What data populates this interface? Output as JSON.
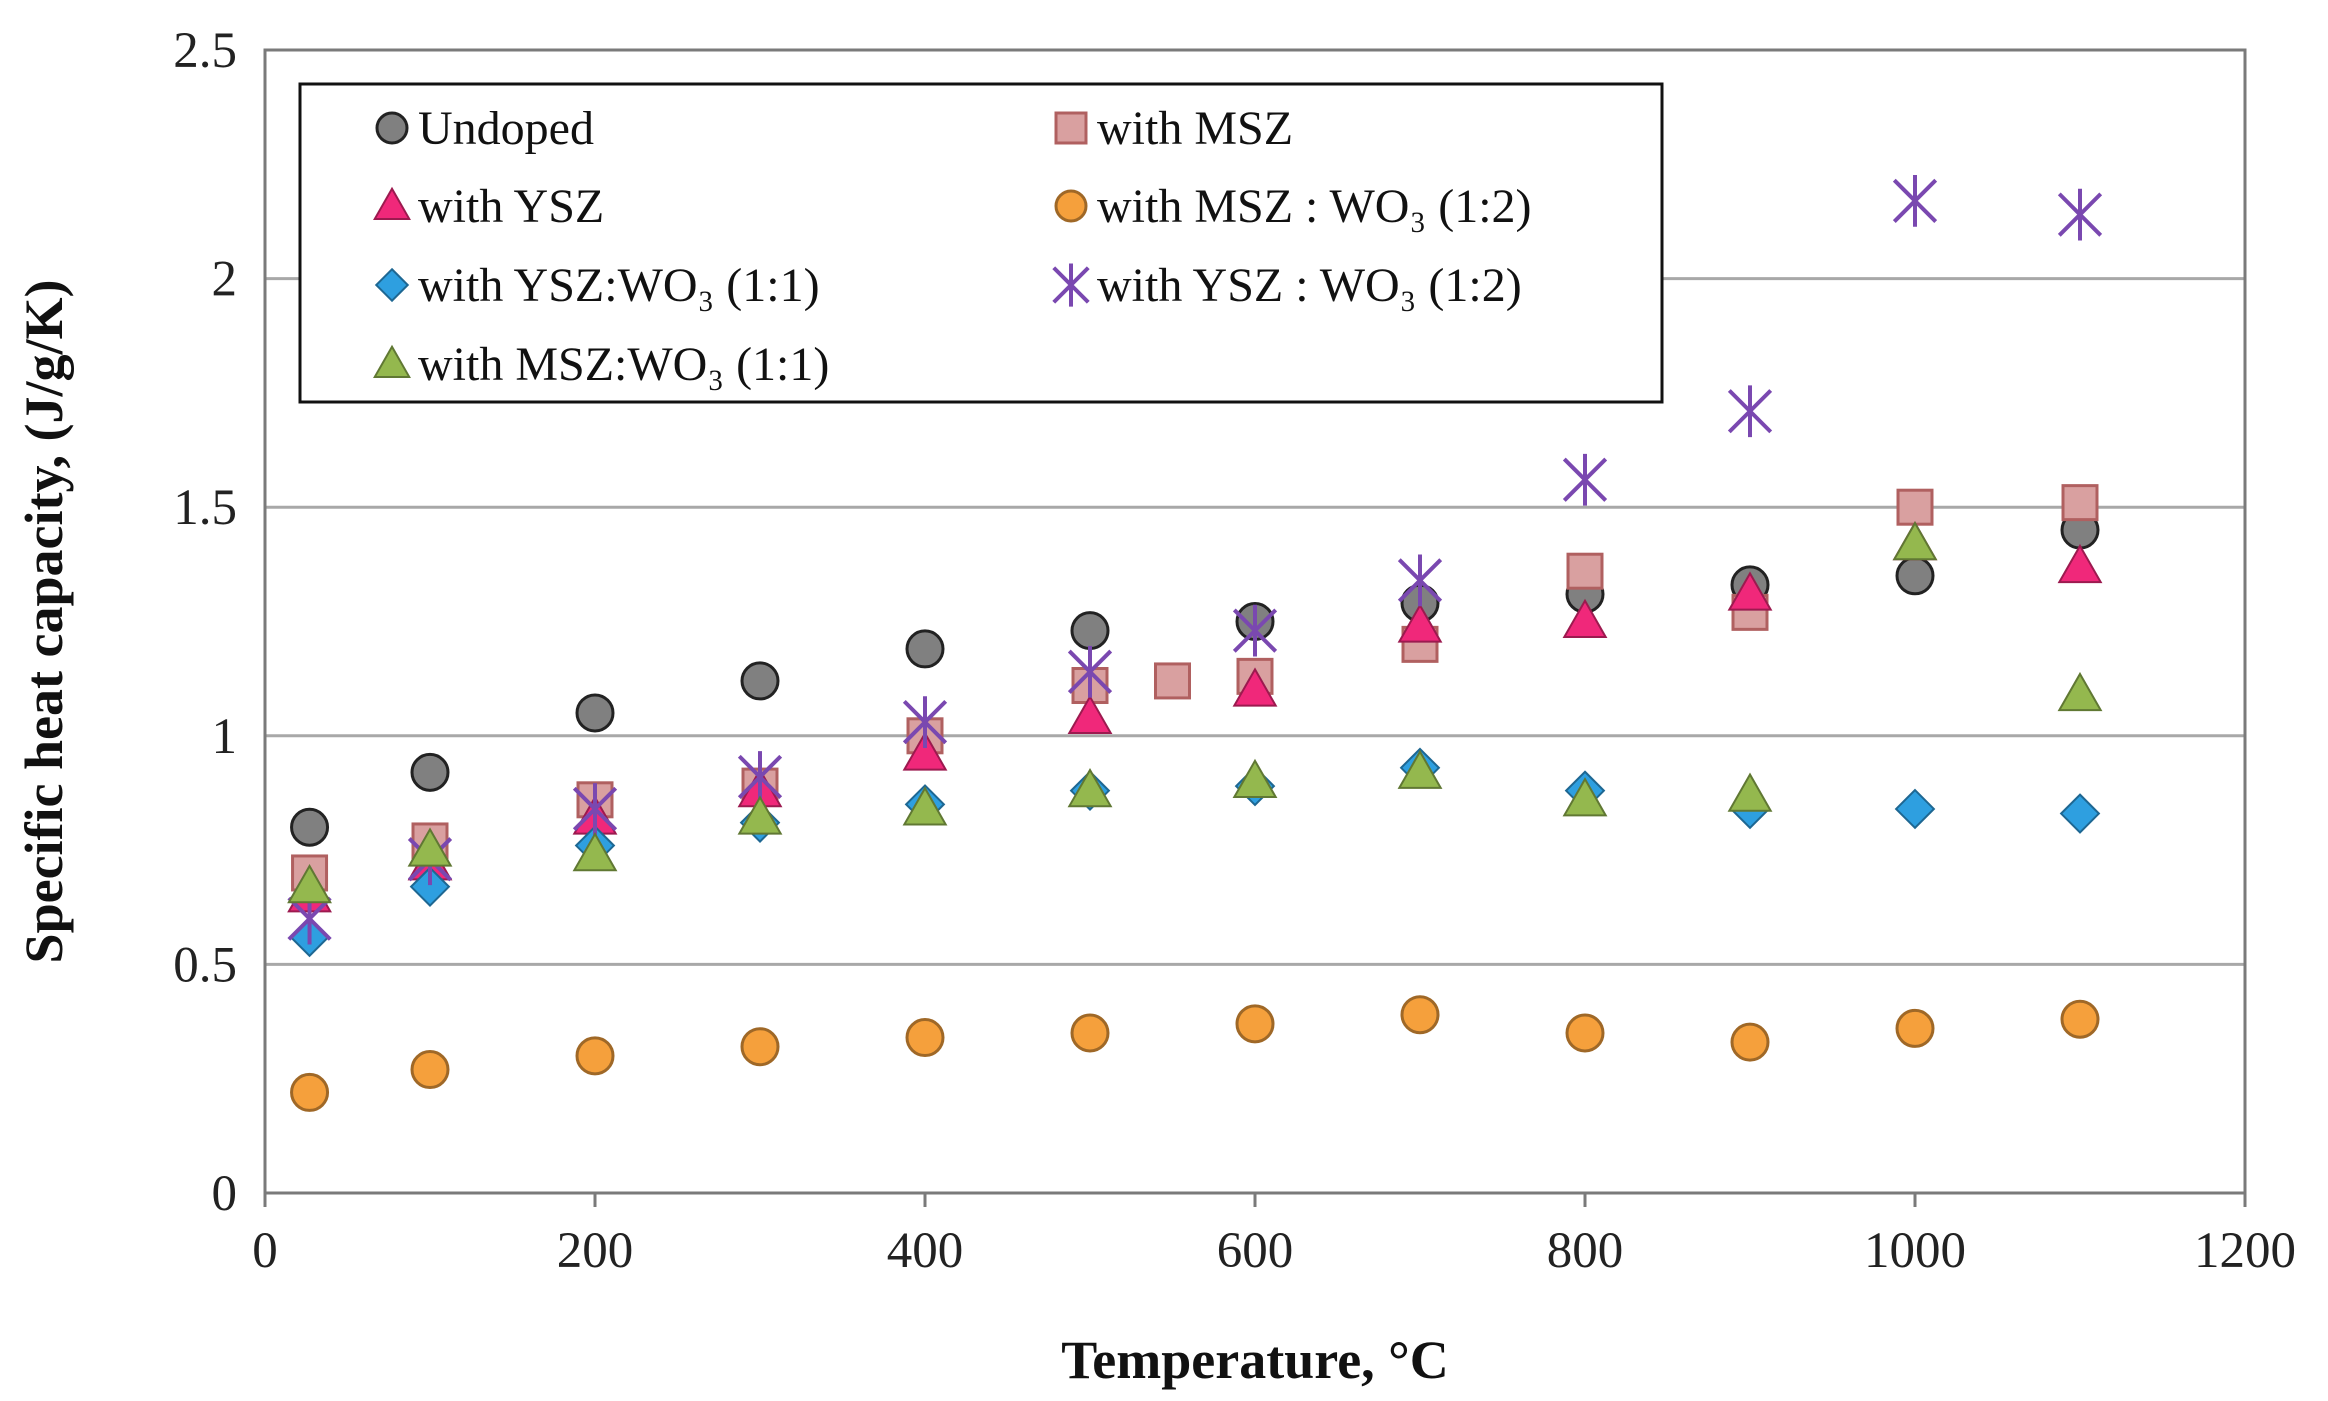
{
  "chart_data": {
    "type": "scatter",
    "xlabel": "Temperature, °C",
    "ylabel": "Specific heat capacity, (J/g/K)",
    "xlim": [
      0,
      1200
    ],
    "ylim": [
      0,
      2.5
    ],
    "x_ticks": [
      "0",
      "200",
      "400",
      "600",
      "800",
      "1000",
      "1200"
    ],
    "y_ticks": [
      "0",
      "0.5",
      "1",
      "1.5",
      "2",
      "2.5"
    ],
    "grid": "horizontal",
    "legend_position": "top-left",
    "series": [
      {
        "name": "Undoped",
        "marker": "circle",
        "color": "#808080",
        "points": [
          [
            27,
            0.8
          ],
          [
            100,
            0.92
          ],
          [
            200,
            1.05
          ],
          [
            300,
            1.12
          ],
          [
            400,
            1.19
          ],
          [
            500,
            1.23
          ],
          [
            600,
            1.25
          ],
          [
            700,
            1.29
          ],
          [
            800,
            1.31
          ],
          [
            900,
            1.33
          ],
          [
            1000,
            1.35
          ],
          [
            1100,
            1.45
          ]
        ]
      },
      {
        "name": "with MSZ",
        "marker": "square",
        "color": "#d9a0a0",
        "points": [
          [
            27,
            0.7
          ],
          [
            100,
            0.77
          ],
          [
            200,
            0.86
          ],
          [
            300,
            0.89
          ],
          [
            400,
            1.0
          ],
          [
            500,
            1.11
          ],
          [
            550,
            1.12
          ],
          [
            600,
            1.13
          ],
          [
            700,
            1.2
          ],
          [
            800,
            1.36
          ],
          [
            900,
            1.27
          ],
          [
            1000,
            1.5
          ],
          [
            1100,
            1.51
          ]
        ]
      },
      {
        "name": "with YSZ",
        "marker": "triangle",
        "color": "#f0287a",
        "points": [
          [
            27,
            0.65
          ],
          [
            100,
            0.72
          ],
          [
            200,
            0.82
          ],
          [
            300,
            0.88
          ],
          [
            400,
            0.96
          ],
          [
            500,
            1.04
          ],
          [
            600,
            1.1
          ],
          [
            700,
            1.24
          ],
          [
            800,
            1.25
          ],
          [
            900,
            1.31
          ],
          [
            1000,
            1.42
          ],
          [
            1100,
            1.37
          ]
        ]
      },
      {
        "name": "with MSZ : WO₃ (1:2)",
        "marker": "circle",
        "color": "#f5a03c",
        "points": [
          [
            27,
            0.22
          ],
          [
            100,
            0.27
          ],
          [
            200,
            0.3
          ],
          [
            300,
            0.32
          ],
          [
            400,
            0.34
          ],
          [
            500,
            0.35
          ],
          [
            600,
            0.37
          ],
          [
            700,
            0.39
          ],
          [
            800,
            0.35
          ],
          [
            900,
            0.33
          ],
          [
            1000,
            0.36
          ],
          [
            1100,
            0.38
          ]
        ]
      },
      {
        "name": "with YSZ:WO₃ (1:1)",
        "marker": "diamond",
        "color": "#2e9fe0",
        "points": [
          [
            27,
            0.56
          ],
          [
            100,
            0.67
          ],
          [
            200,
            0.76
          ],
          [
            300,
            0.81
          ],
          [
            400,
            0.85
          ],
          [
            500,
            0.88
          ],
          [
            600,
            0.89
          ],
          [
            700,
            0.93
          ],
          [
            800,
            0.88
          ],
          [
            900,
            0.84
          ],
          [
            1000,
            0.84
          ],
          [
            1100,
            0.83
          ]
        ]
      },
      {
        "name": "with YSZ : WO₃ (1:2)",
        "marker": "star",
        "color": "#7a48b0",
        "points": [
          [
            27,
            0.6
          ],
          [
            100,
            0.73
          ],
          [
            200,
            0.84
          ],
          [
            300,
            0.91
          ],
          [
            400,
            1.03
          ],
          [
            500,
            1.14
          ],
          [
            600,
            1.23
          ],
          [
            700,
            1.34
          ],
          [
            800,
            1.56
          ],
          [
            900,
            1.71
          ],
          [
            1000,
            2.17
          ],
          [
            1100,
            2.14
          ]
        ]
      },
      {
        "name": "with MSZ:WO₃ (1:1)",
        "marker": "triangle",
        "color": "#94b84e",
        "points": [
          [
            27,
            0.67
          ],
          [
            100,
            0.75
          ],
          [
            200,
            0.74
          ],
          [
            300,
            0.82
          ],
          [
            400,
            0.84
          ],
          [
            500,
            0.88
          ],
          [
            600,
            0.9
          ],
          [
            700,
            0.92
          ],
          [
            800,
            0.86
          ],
          [
            900,
            0.87
          ],
          [
            1000,
            1.42
          ],
          [
            1100,
            1.09
          ]
        ]
      }
    ]
  }
}
